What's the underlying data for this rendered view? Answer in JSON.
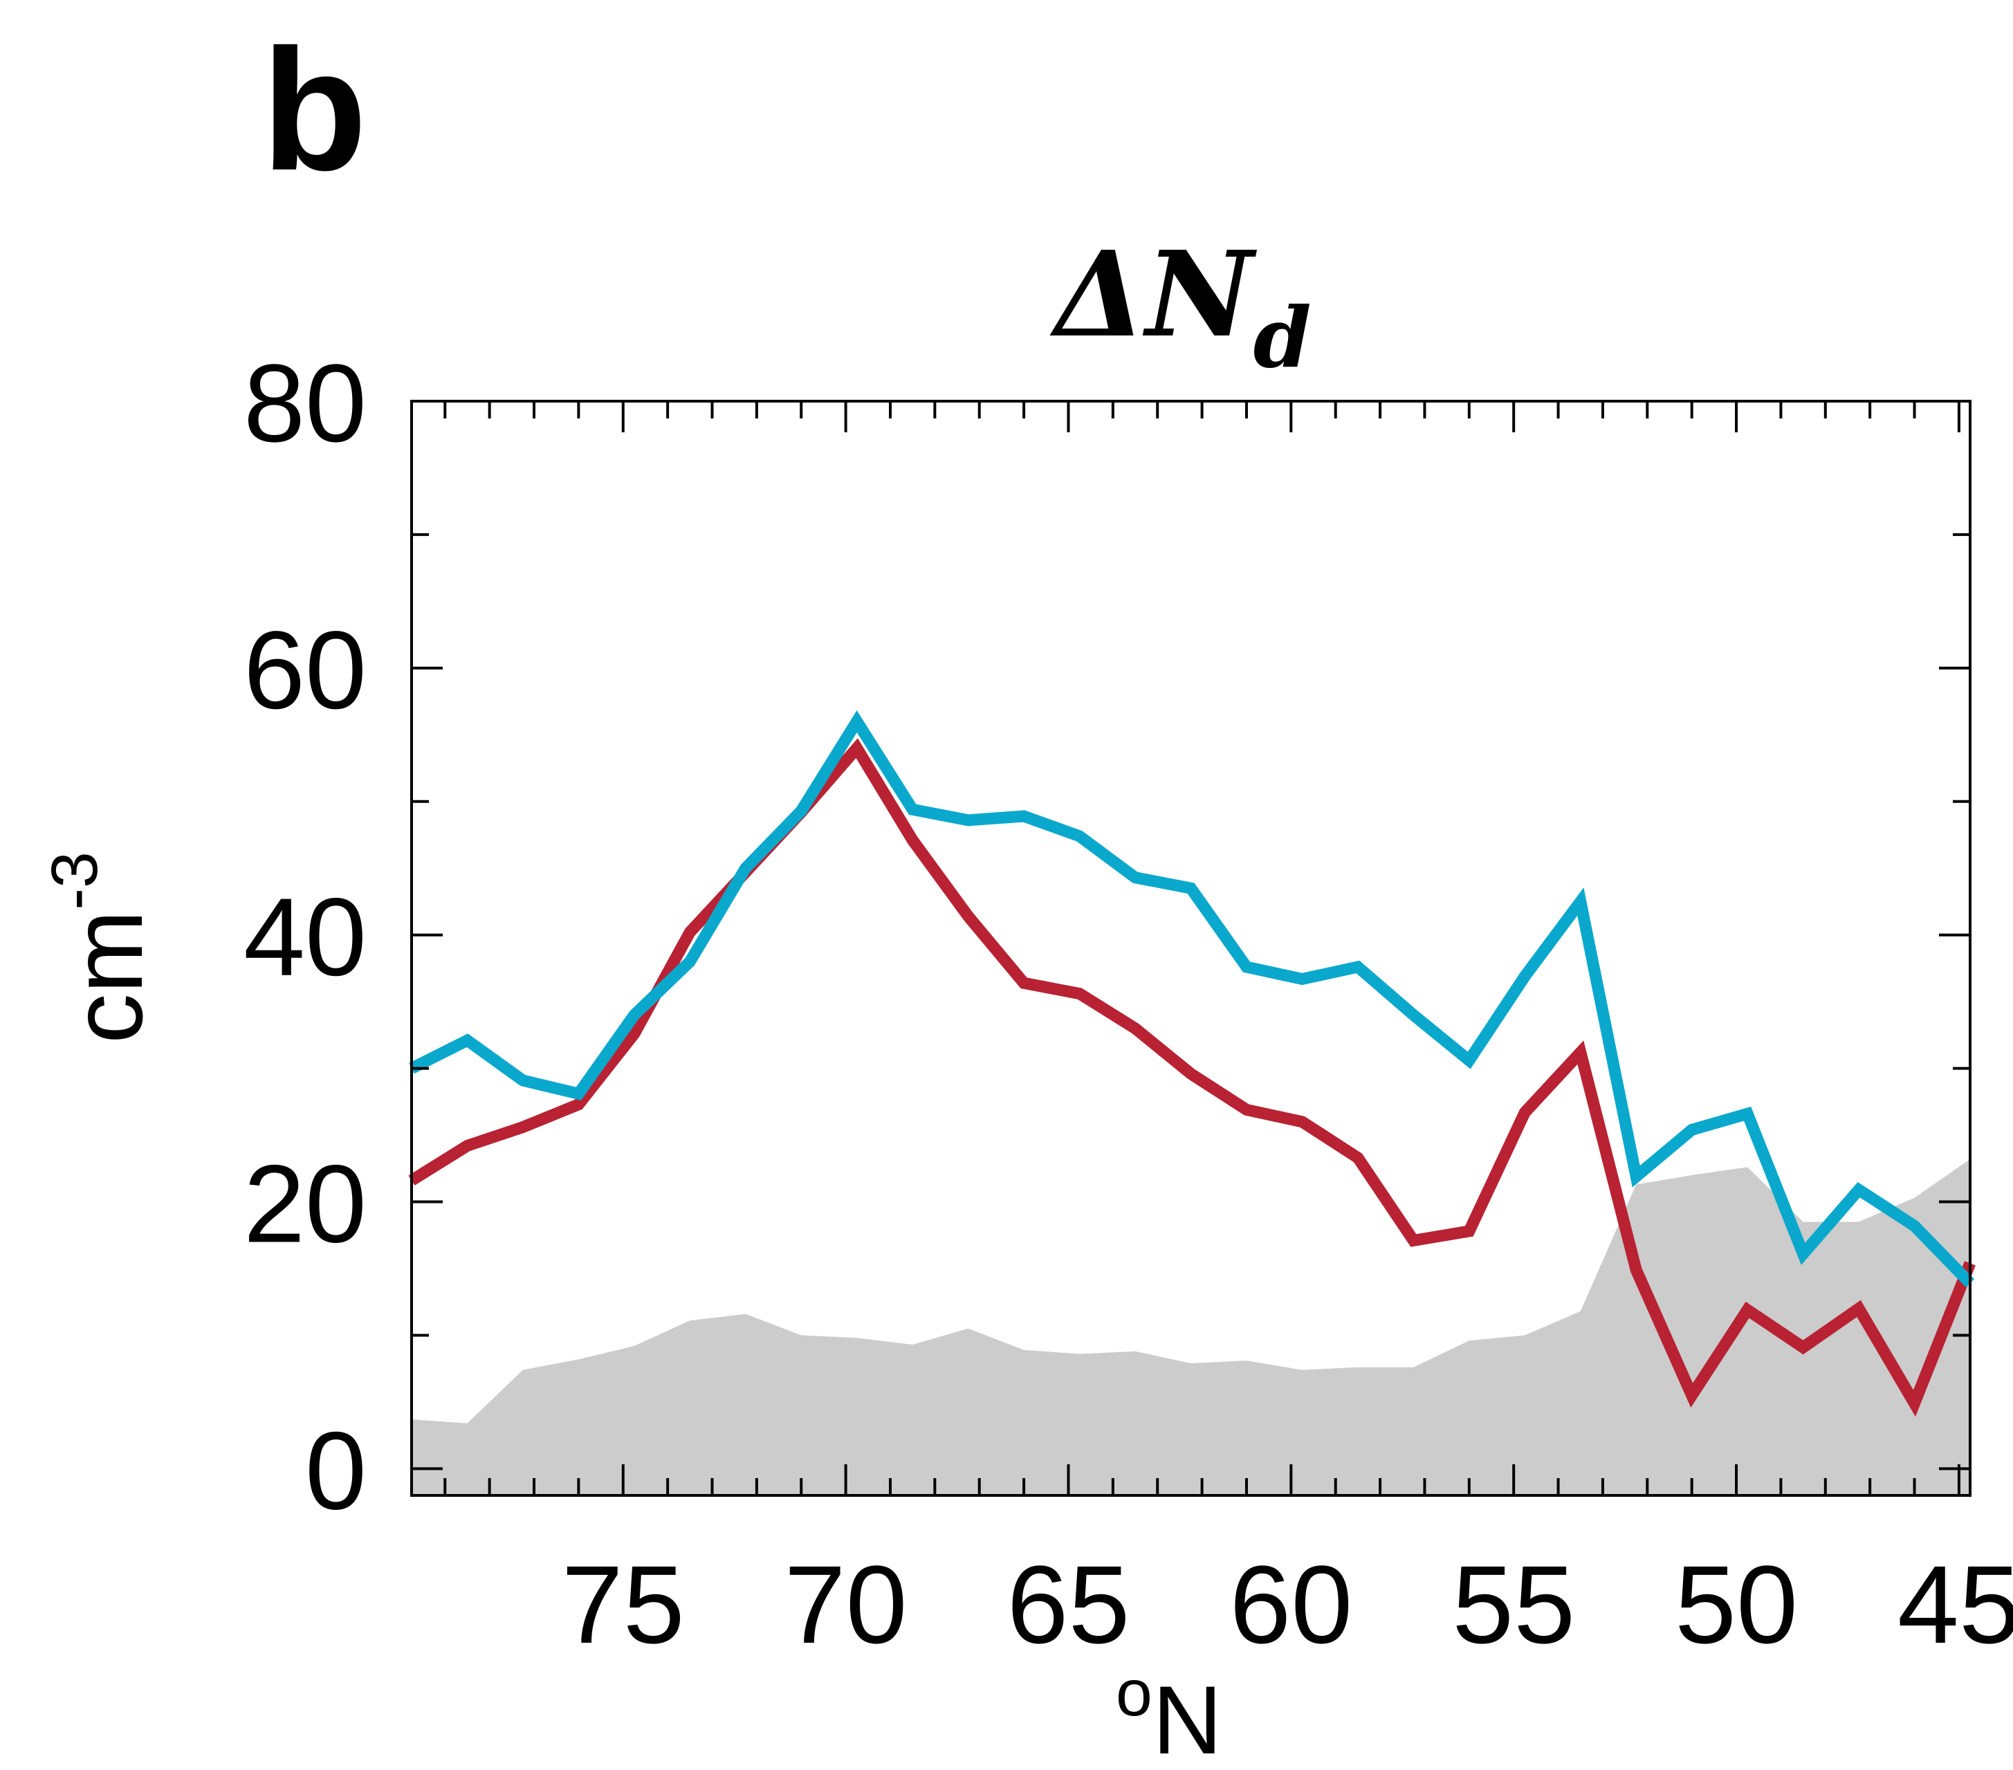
{
  "chart_data": {
    "type": "line",
    "panel_label": "b",
    "title": "ΔN",
    "title_subscript": "d",
    "xlabel": "oN",
    "xlabel_sup": "o",
    "xlabel_main": "N",
    "ylabel": "cm-3",
    "ylabel_base": "cm",
    "ylabel_sup": "-3",
    "xlim": [
      79.75,
      44.75
    ],
    "ylim": [
      -2,
      80
    ],
    "xticks": [
      75,
      70,
      65,
      60,
      55,
      50,
      45
    ],
    "xtick_labels": [
      "75",
      "70",
      "65",
      "60",
      "55",
      "50",
      "45"
    ],
    "yticks": [
      0,
      20,
      40,
      60,
      80
    ],
    "ytick_labels": [
      "0",
      "20",
      "40",
      "60",
      "80"
    ],
    "x": [
      79.75,
      78.5,
      77.25,
      76.0,
      74.75,
      73.5,
      72.25,
      71.0,
      69.75,
      68.5,
      67.25,
      66.0,
      64.75,
      63.5,
      62.25,
      61.0,
      59.75,
      58.5,
      57.25,
      56.0,
      54.75,
      53.5,
      52.25,
      51.0,
      49.75,
      48.5,
      47.25,
      46.0,
      44.75
    ],
    "series": [
      {
        "color": "#b82233",
        "values": [
          21.6,
          24.2,
          25.6,
          27.3,
          32.6,
          40.2,
          44.7,
          49.2,
          54.0,
          47.1,
          41.4,
          36.4,
          35.6,
          33.0,
          29.6,
          26.9,
          26.0,
          23.3,
          17.1,
          17.8,
          26.7,
          31.2,
          14.9,
          5.5,
          11.9,
          9.1,
          12.0,
          4.9,
          15.4
        ]
      },
      {
        "color": "#0aa8cc",
        "values": [
          30.0,
          32.1,
          29.1,
          28.1,
          34.0,
          38.0,
          45.0,
          49.3,
          56.0,
          49.4,
          48.6,
          48.9,
          47.4,
          44.3,
          43.5,
          37.6,
          36.7,
          37.6,
          34.0,
          30.6,
          36.9,
          42.5,
          21.9,
          25.4,
          26.6,
          16.1,
          20.9,
          18.2,
          13.9
        ]
      }
    ],
    "fill": {
      "color": "#cccccc",
      "values": [
        3.7,
        3.4,
        7.4,
        8.2,
        9.2,
        11.1,
        11.6,
        10.0,
        9.8,
        9.3,
        10.5,
        8.9,
        8.6,
        8.8,
        7.9,
        8.1,
        7.4,
        7.6,
        7.6,
        9.6,
        10.0,
        11.8,
        21.3,
        22.0,
        22.6,
        18.5,
        18.5,
        20.3,
        23.2
      ]
    },
    "grid": false,
    "legend": "none"
  }
}
